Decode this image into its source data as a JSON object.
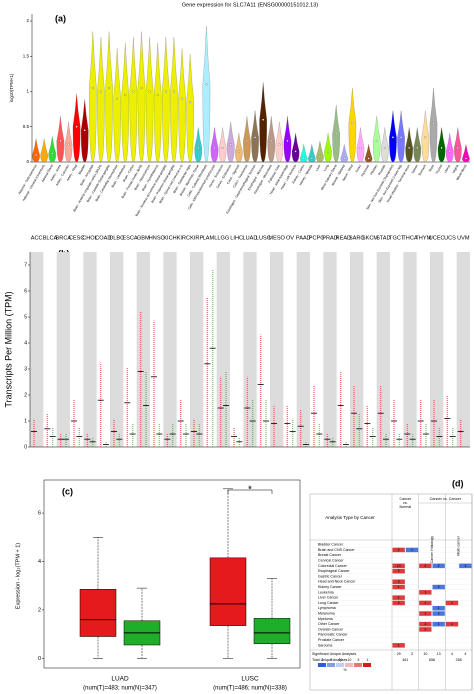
{
  "chart_data": [
    {
      "type": "violin",
      "panel_label": "(a)",
      "title": "Gene expression for SLC7A11 (ENSG00000151012.13)",
      "y_label": "log10(TPM+1)",
      "categories": [
        "Adipose - Subcutaneous",
        "Adipose - Visceral (Omentum)",
        "Adrenal Gland",
        "Artery - Aorta",
        "Artery - Coronary",
        "Artery - Tibial",
        "Bladder",
        "Brain - Amygdala",
        "Brain - Anterior cingulate cortex (BA24)",
        "Brain - Caudate (basal ganglia)",
        "Brain - Cerebellar Hemisphere",
        "Brain - Cerebellum",
        "Brain - Cortex",
        "Brain - Frontal Cortex (BA9)",
        "Brain - Hippocampus",
        "Brain - Hypothalamus",
        "Brain - Nucleus accumbens (basal ganglia)",
        "Brain - Putamen (basal ganglia)",
        "Brain - Spinal cord (cervical c-1)",
        "Brain - Substantia nigra",
        "Breast - Mammary Tissue",
        "Cells - Cultured fibroblasts",
        "Cells - EBV-transformed lymphocytes",
        "Cervix - Ectocervix",
        "Cervix - Endocervix",
        "Colon - Sigmoid",
        "Colon - Transverse",
        "Esophagus - Gastroesophageal Junction",
        "Esophagus - Mucosa",
        "Esophagus - Muscularis",
        "Fallopian Tube",
        "Heart - Atrial Appendage",
        "Heart - Left Ventricle",
        "Kidney - Cortex",
        "Kidney - Medulla",
        "Liver",
        "Lung",
        "Minor Salivary Gland",
        "Muscle - Skeletal",
        "Nerve - Tibial",
        "Ovary",
        "Pancreas",
        "Pituitary",
        "Prostate",
        "Skin - Not Sun Exposed (Suprapubic)",
        "Skin - Sun Exposed (Lower leg)",
        "Small Intestine - Terminal Ileum",
        "Spleen",
        "Stomach",
        "Testis",
        "Thyroid",
        "Uterus",
        "Vagina",
        "Whole Blood"
      ],
      "values": [
        0.1,
        0.1,
        0.12,
        0.3,
        0.25,
        0.5,
        0.45,
        1.05,
        1.0,
        1.05,
        0.9,
        0.95,
        1.0,
        1.05,
        1.0,
        0.95,
        1.0,
        1.0,
        0.9,
        0.85,
        0.2,
        1.1,
        0.2,
        0.2,
        0.25,
        0.15,
        0.3,
        0.35,
        0.6,
        0.3,
        0.25,
        0.3,
        0.15,
        0.05,
        0.05,
        0.08,
        0.15,
        0.4,
        0.05,
        0.55,
        0.2,
        0.05,
        0.3,
        0.2,
        0.35,
        0.35,
        0.2,
        0.2,
        0.35,
        0.55,
        0.2,
        0.15,
        0.2,
        0.05
      ],
      "colors": [
        "#FF6600",
        "#FFAA00",
        "#33DD33",
        "#FF5555",
        "#FFAA99",
        "#FF0000",
        "#AA0000",
        "#EEEE00",
        "#EEEE00",
        "#EEEE00",
        "#EEEE00",
        "#EEEE00",
        "#EEEE00",
        "#EEEE00",
        "#EEEE00",
        "#EEEE00",
        "#EEEE00",
        "#EEEE00",
        "#EEEE00",
        "#EEEE00",
        "#33CCCC",
        "#AAEEFF",
        "#CC66FF",
        "#FFCCCC",
        "#CCAADD",
        "#EEBB77",
        "#CC9955",
        "#8B7355",
        "#552200",
        "#BB9988",
        "#FFCCCC",
        "#9900FF",
        "#660099",
        "#22FFDD",
        "#33CCCC",
        "#AABB66",
        "#99FF00",
        "#99BB88",
        "#AAAAFF",
        "#FFD700",
        "#FFAAFF",
        "#995522",
        "#AAFF99",
        "#DDDDDD",
        "#0000FF",
        "#7777FF",
        "#555522",
        "#778855",
        "#FFDD99",
        "#AAAAAA",
        "#006600",
        "#FF66FF",
        "#FF5599",
        "#FF00BB"
      ],
      "ylim": [
        0,
        2.1
      ],
      "yticks": [
        0,
        0.5,
        1,
        1.5,
        2
      ]
    },
    {
      "type": "dot",
      "panel_label": "(b)",
      "y_label": "Transcripts Per Million (TPM)",
      "categories": [
        "ACC",
        "BLCA",
        "BRCA",
        "CESC",
        "CHOL",
        "COAD",
        "DLBC",
        "ESCA",
        "GBM",
        "HNSC",
        "KICH",
        "KIRC",
        "KIRP",
        "LAML",
        "LGG",
        "LIHC",
        "LUAD",
        "LUSC",
        "MESO",
        "OV",
        "PAAD",
        "PCPG",
        "PRAD",
        "READ",
        "SARC",
        "SKCM",
        "STAD",
        "TGCT",
        "THCA",
        "THYM",
        "UCEC",
        "UCS",
        "UVM"
      ],
      "category_colors": [
        "#000000",
        "#000000",
        "#000000",
        "#000000",
        "#000000",
        "#e41a1c",
        "#000000",
        "#e41a1c",
        "#000000",
        "#000000",
        "#000000",
        "#000000",
        "#000000",
        "#2ca02c",
        "#000000",
        "#000000",
        "#000000",
        "#e41a1c",
        "#000000",
        "#000000",
        "#000000",
        "#000000",
        "#000000",
        "#e41a1c",
        "#000000",
        "#000000",
        "#000000",
        "#000000",
        "#000000",
        "#000000",
        "#e41a1c",
        "#000000",
        "#000000"
      ],
      "series": [
        {
          "color": "#e41a1c",
          "values": [
            0.6,
            0.7,
            0.3,
            1.0,
            0.3,
            1.8,
            0.6,
            1.7,
            2.9,
            2.7,
            0.3,
            1.0,
            0.6,
            3.2,
            1.5,
            0.4,
            1.5,
            2.4,
            0.9,
            0.9,
            0.8,
            1.3,
            0.3,
            1.6,
            1.3,
            0.9,
            1.3,
            1.0,
            0.5,
            1.0,
            1.0,
            1.1,
            0.6
          ]
        },
        {
          "color": "#2ca02c",
          "values": [
            null,
            0.4,
            0.3,
            0.4,
            0.2,
            0.1,
            0.3,
            0.5,
            1.6,
            0.5,
            0.5,
            0.5,
            0.5,
            3.8,
            1.6,
            0.2,
            1.0,
            1.0,
            null,
            0.6,
            0.1,
            0.5,
            0.2,
            0.1,
            0.7,
            0.4,
            0.3,
            0.3,
            0.3,
            0.5,
            0.4,
            0.4,
            null
          ]
        }
      ],
      "ylim": [
        0,
        7.5
      ],
      "yticks": [
        0,
        1,
        2,
        3,
        4,
        5,
        6,
        7
      ]
    },
    {
      "type": "box",
      "panel_label": "(c)",
      "y_label": "Expression - log₂(TPM + 1)",
      "categories": [
        "LUAD",
        "LUSC"
      ],
      "category_notes": [
        "(num(T)=483; num(N)=347)",
        "(num(T)=486; num(N)=338)"
      ],
      "series": [
        {
          "color": "#e41a1c",
          "boxes": [
            {
              "min": 0,
              "q1": 0.9,
              "median": 1.6,
              "q3": 2.85,
              "max": 5.0
            },
            {
              "min": 0,
              "q1": 1.35,
              "median": 2.25,
              "q3": 4.15,
              "max": 7.0
            }
          ]
        },
        {
          "color": "#1fae2a",
          "boxes": [
            {
              "min": 0,
              "q1": 0.55,
              "median": 1.05,
              "q3": 1.55,
              "max": 2.9
            },
            {
              "min": 0,
              "q1": 0.6,
              "median": 1.05,
              "q3": 1.65,
              "max": 3.3
            }
          ]
        }
      ],
      "significance": "*",
      "significance_color": "#e41a1c",
      "ylim": [
        -0.4,
        7.2
      ],
      "yticks": [
        0,
        2,
        4,
        6
      ]
    }
  ],
  "oncomine_table": {
    "panel_label": "(d)",
    "header": "Analysis Type by Cancer",
    "groups": [
      "Cancer vs. Normal",
      "Cancer vs. Cancer"
    ],
    "subgroups": [
      "Cancer Histology",
      "Multi-cancer"
    ],
    "up_color": "#d7191c",
    "down_color": "#2c5fd6",
    "rows": [
      {
        "name": "Bladder Cancer",
        "cells": [
          null,
          null,
          null,
          null,
          null,
          null
        ]
      },
      {
        "name": "Brain and CNS Cancer",
        "cells": [
          2,
          1,
          null,
          null,
          null,
          null
        ]
      },
      {
        "name": "Breast Cancer",
        "cells": [
          null,
          null,
          null,
          null,
          null,
          null
        ]
      },
      {
        "name": "Cervical Cancer",
        "cells": [
          null,
          null,
          null,
          null,
          null,
          null
        ]
      },
      {
        "name": "Colorectal Cancer",
        "cells": [
          13,
          null,
          2,
          2,
          null,
          1
        ]
      },
      {
        "name": "Esophageal Cancer",
        "cells": [
          2,
          null,
          null,
          null,
          null,
          null
        ]
      },
      {
        "name": "Gastric Cancer",
        "cells": [
          null,
          null,
          null,
          null,
          null,
          null
        ]
      },
      {
        "name": "Head and Neck Cancer",
        "cells": [
          3,
          null,
          null,
          null,
          null,
          null
        ]
      },
      {
        "name": "Kidney Cancer",
        "cells": [
          1,
          null,
          null,
          2,
          null,
          null
        ]
      },
      {
        "name": "Leukemia",
        "cells": [
          null,
          null,
          1,
          null,
          null,
          null
        ]
      },
      {
        "name": "Liver Cancer",
        "cells": [
          1,
          null,
          null,
          null,
          null,
          null
        ]
      },
      {
        "name": "Lung Cancer",
        "cells": [
          2,
          null,
          1,
          null,
          1,
          null
        ]
      },
      {
        "name": "Lymphoma",
        "cells": [
          null,
          null,
          null,
          1,
          null,
          null
        ]
      },
      {
        "name": "Melanoma",
        "cells": [
          null,
          null,
          1,
          3,
          null,
          null
        ]
      },
      {
        "name": "Myeloma",
        "cells": [
          null,
          null,
          null,
          null,
          null,
          null
        ]
      },
      {
        "name": "Other Cancer",
        "cells": [
          null,
          null,
          2,
          1,
          1,
          null
        ]
      },
      {
        "name": "Ovarian Cancer",
        "cells": [
          null,
          null,
          2,
          null,
          null,
          null
        ]
      },
      {
        "name": "Pancreatic Cancer",
        "cells": [
          null,
          null,
          null,
          null,
          null,
          null
        ]
      },
      {
        "name": "Prostate Cancer",
        "cells": [
          null,
          null,
          null,
          null,
          null,
          null
        ]
      },
      {
        "name": "Sarcoma",
        "cells": [
          1,
          null,
          null,
          null,
          null,
          null
        ]
      }
    ],
    "significant_label": "Significant Unique Analyses",
    "significant": [
      29,
      3,
      10,
      13,
      4,
      4
    ],
    "total_label": "Total Unique Analyses",
    "totals": [
      461,
      656,
      258
    ],
    "legend": [
      "1",
      "5",
      "10",
      "10",
      "5",
      "1"
    ],
    "legend_unit": "%"
  }
}
